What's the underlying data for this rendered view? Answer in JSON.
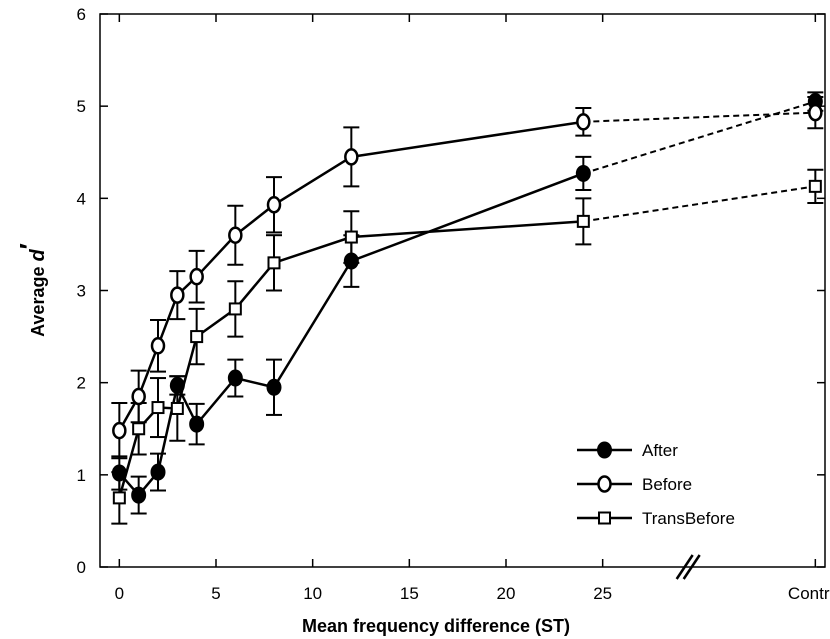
{
  "chart_data": {
    "type": "line",
    "xlabel": "Mean frequency difference (ST)",
    "ylabel_main": "Average ",
    "ylabel_italic": "d",
    "ylabel_prime": "′",
    "xlim": [
      -1,
      36.5
    ],
    "ylim": [
      0,
      6
    ],
    "xticks": [
      {
        "value": 0,
        "label": "0"
      },
      {
        "value": 5,
        "label": "5"
      },
      {
        "value": 10,
        "label": "10"
      },
      {
        "value": 15,
        "label": "15"
      },
      {
        "value": 20,
        "label": "20"
      },
      {
        "value": 25,
        "label": "25"
      },
      {
        "value": 36,
        "label": "Control"
      }
    ],
    "yticks": [
      0,
      1,
      2,
      3,
      4,
      5,
      6
    ],
    "axis_break_x": 29.5,
    "control_x": 36,
    "legend_position": "bottom-right",
    "series": [
      {
        "name": "After",
        "marker": "filled-circle",
        "x": [
          0,
          1,
          2,
          3,
          4,
          6,
          8,
          12,
          24
        ],
        "y": [
          1.02,
          0.78,
          1.03,
          1.97,
          1.55,
          2.05,
          1.95,
          3.32,
          4.27
        ],
        "err": [
          0.18,
          0.2,
          0.2,
          0.1,
          0.22,
          0.2,
          0.3,
          0.28,
          0.18
        ],
        "control": {
          "y": 5.05,
          "err": 0.1
        }
      },
      {
        "name": "Before",
        "marker": "open-circle",
        "x": [
          0,
          1,
          2,
          3,
          4,
          6,
          8,
          12,
          24
        ],
        "y": [
          1.48,
          1.85,
          2.4,
          2.95,
          3.15,
          3.6,
          3.93,
          4.45,
          4.83
        ],
        "err": [
          0.3,
          0.28,
          0.28,
          0.26,
          0.28,
          0.32,
          0.3,
          0.32,
          0.15
        ],
        "control": {
          "y": 4.93,
          "err": 0.17
        }
      },
      {
        "name": "TransBefore",
        "marker": "open-square",
        "x": [
          0,
          1,
          2,
          3,
          4,
          6,
          8,
          12,
          24
        ],
        "y": [
          0.75,
          1.5,
          1.73,
          1.72,
          2.5,
          2.8,
          3.3,
          3.58,
          3.75
        ],
        "err": [
          0.28,
          0.28,
          0.32,
          0.35,
          0.3,
          0.3,
          0.3,
          0.28,
          0.25
        ],
        "control": {
          "y": 4.13,
          "err": 0.18
        }
      }
    ]
  }
}
